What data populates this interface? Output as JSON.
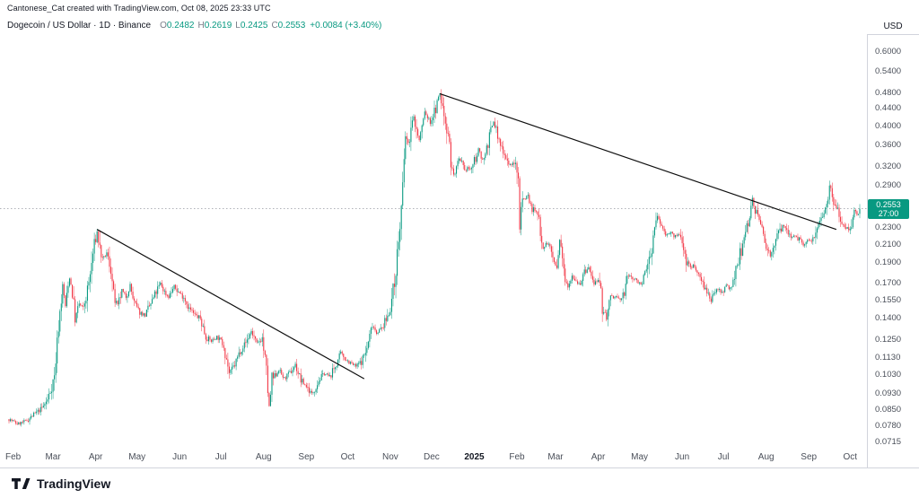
{
  "attribution": "Cantonese_Cat created with TradingView.com, Oct 08, 2025 23:33 UTC",
  "header": {
    "symbol_line": "Dogecoin / US Dollar · 1D · Binance",
    "ohlc": {
      "o_label": "O",
      "o": "0.2482",
      "h_label": "H",
      "h": "0.2619",
      "l_label": "L",
      "l": "0.2425",
      "c_label": "C",
      "c": "0.2553",
      "change": "+0.0084 (+3.40%)"
    },
    "currency": "USD"
  },
  "price_axis": {
    "labels": [
      "0.6000",
      "0.5400",
      "0.4800",
      "0.4400",
      "0.4000",
      "0.3600",
      "0.3200",
      "0.2900",
      "0.2300",
      "0.2100",
      "0.1900",
      "0.1700",
      "0.1550",
      "0.1400",
      "0.1250",
      "0.1130",
      "0.1030",
      "0.0930",
      "0.0850",
      "0.0780",
      "0.0715"
    ],
    "badge": {
      "price": "0.2553",
      "countdown": "27:00"
    }
  },
  "time_axis": {
    "months": [
      {
        "label": "Feb",
        "day": 3
      },
      {
        "label": "Mar",
        "day": 32
      },
      {
        "label": "Apr",
        "day": 63
      },
      {
        "label": "May",
        "day": 93
      },
      {
        "label": "Jun",
        "day": 124
      },
      {
        "label": "Jul",
        "day": 154
      },
      {
        "label": "Aug",
        "day": 185
      },
      {
        "label": "Sep",
        "day": 216
      },
      {
        "label": "Oct",
        "day": 246
      },
      {
        "label": "Nov",
        "day": 277
      },
      {
        "label": "Dec",
        "day": 307
      },
      {
        "label": "2025",
        "day": 338,
        "bold": true
      },
      {
        "label": "Feb",
        "day": 369
      },
      {
        "label": "Mar",
        "day": 397
      },
      {
        "label": "Apr",
        "day": 428
      },
      {
        "label": "May",
        "day": 458
      },
      {
        "label": "Jun",
        "day": 489
      },
      {
        "label": "Jul",
        "day": 519
      },
      {
        "label": "Aug",
        "day": 550
      },
      {
        "label": "Sep",
        "day": 581
      },
      {
        "label": "Oct",
        "day": 611
      }
    ]
  },
  "footer": {
    "brand": "TradingView"
  },
  "colors": {
    "up": "#089981",
    "down": "#F23645",
    "trendline": "#0F0F0F",
    "price_line": "#9598A1",
    "badge_bg": "#089981",
    "text": "#131722",
    "muted": "#787B86"
  },
  "chart_data": {
    "type": "candlestick",
    "title": "Dogecoin / US Dollar",
    "exchange": "Binance",
    "interval": "1D",
    "scale": "log",
    "x_range_days": 618,
    "x_start": "2024-01-29",
    "x_end": "2025-10-08",
    "ylim": [
      0.0638,
      0.655
    ],
    "current_price": 0.2553,
    "last_candle": {
      "open": 0.2482,
      "high": 0.2619,
      "low": 0.2425,
      "close": 0.2553,
      "change": 0.0084,
      "change_pct": 3.4
    },
    "price_path": [
      [
        0,
        0.081
      ],
      [
        6,
        0.079
      ],
      [
        12,
        0.08
      ],
      [
        18,
        0.083
      ],
      [
        24,
        0.086
      ],
      [
        28,
        0.09
      ],
      [
        33,
        0.102
      ],
      [
        36,
        0.135
      ],
      [
        39,
        0.168
      ],
      [
        41,
        0.15
      ],
      [
        44,
        0.176
      ],
      [
        46,
        0.162
      ],
      [
        48,
        0.14
      ],
      [
        51,
        0.152
      ],
      [
        54,
        0.148
      ],
      [
        57,
        0.163
      ],
      [
        59,
        0.178
      ],
      [
        61,
        0.2
      ],
      [
        64,
        0.225
      ],
      [
        66,
        0.205
      ],
      [
        68,
        0.193
      ],
      [
        71,
        0.2
      ],
      [
        74,
        0.185
      ],
      [
        76,
        0.158
      ],
      [
        79,
        0.15
      ],
      [
        82,
        0.163
      ],
      [
        85,
        0.158
      ],
      [
        88,
        0.168
      ],
      [
        91,
        0.152
      ],
      [
        95,
        0.145
      ],
      [
        99,
        0.143
      ],
      [
        103,
        0.152
      ],
      [
        107,
        0.162
      ],
      [
        110,
        0.17
      ],
      [
        113,
        0.162
      ],
      [
        116,
        0.158
      ],
      [
        120,
        0.167
      ],
      [
        123,
        0.162
      ],
      [
        127,
        0.158
      ],
      [
        131,
        0.148
      ],
      [
        135,
        0.143
      ],
      [
        139,
        0.14
      ],
      [
        143,
        0.127
      ],
      [
        147,
        0.124
      ],
      [
        151,
        0.127
      ],
      [
        156,
        0.122
      ],
      [
        158,
        0.113
      ],
      [
        160,
        0.104
      ],
      [
        164,
        0.109
      ],
      [
        168,
        0.118
      ],
      [
        172,
        0.123
      ],
      [
        176,
        0.131
      ],
      [
        180,
        0.122
      ],
      [
        184,
        0.126
      ],
      [
        187,
        0.105
      ],
      [
        189,
        0.086
      ],
      [
        191,
        0.1
      ],
      [
        196,
        0.106
      ],
      [
        200,
        0.101
      ],
      [
        204,
        0.104
      ],
      [
        208,
        0.109
      ],
      [
        212,
        0.1
      ],
      [
        216,
        0.097
      ],
      [
        220,
        0.093
      ],
      [
        225,
        0.1
      ],
      [
        229,
        0.104
      ],
      [
        233,
        0.102
      ],
      [
        237,
        0.108
      ],
      [
        241,
        0.116
      ],
      [
        244,
        0.113
      ],
      [
        248,
        0.11
      ],
      [
        252,
        0.108
      ],
      [
        256,
        0.111
      ],
      [
        260,
        0.119
      ],
      [
        264,
        0.136
      ],
      [
        267,
        0.13
      ],
      [
        271,
        0.133
      ],
      [
        275,
        0.142
      ],
      [
        278,
        0.155
      ],
      [
        280,
        0.17
      ],
      [
        282,
        0.2
      ],
      [
        284,
        0.23
      ],
      [
        286,
        0.285
      ],
      [
        288,
        0.38
      ],
      [
        290,
        0.36
      ],
      [
        292,
        0.395
      ],
      [
        294,
        0.42
      ],
      [
        296,
        0.392
      ],
      [
        298,
        0.37
      ],
      [
        300,
        0.4
      ],
      [
        302,
        0.432
      ],
      [
        304,
        0.42
      ],
      [
        306,
        0.408
      ],
      [
        308,
        0.425
      ],
      [
        310,
        0.44
      ],
      [
        313,
        0.478
      ],
      [
        315,
        0.44
      ],
      [
        317,
        0.412
      ],
      [
        319,
        0.39
      ],
      [
        321,
        0.33
      ],
      [
        323,
        0.305
      ],
      [
        325,
        0.318
      ],
      [
        327,
        0.332
      ],
      [
        329,
        0.325
      ],
      [
        331,
        0.312
      ],
      [
        333,
        0.32
      ],
      [
        335,
        0.315
      ],
      [
        338,
        0.33
      ],
      [
        341,
        0.352
      ],
      [
        343,
        0.338
      ],
      [
        345,
        0.335
      ],
      [
        347,
        0.358
      ],
      [
        350,
        0.388
      ],
      [
        352,
        0.41
      ],
      [
        354,
        0.392
      ],
      [
        356,
        0.365
      ],
      [
        359,
        0.352
      ],
      [
        362,
        0.332
      ],
      [
        365,
        0.322
      ],
      [
        367,
        0.33
      ],
      [
        370,
        0.298
      ],
      [
        371,
        0.235
      ],
      [
        372,
        0.262
      ],
      [
        374,
        0.27
      ],
      [
        377,
        0.275
      ],
      [
        379,
        0.258
      ],
      [
        382,
        0.252
      ],
      [
        385,
        0.242
      ],
      [
        388,
        0.208
      ],
      [
        391,
        0.212
      ],
      [
        394,
        0.202
      ],
      [
        398,
        0.182
      ],
      [
        400,
        0.214
      ],
      [
        403,
        0.182
      ],
      [
        406,
        0.168
      ],
      [
        409,
        0.178
      ],
      [
        412,
        0.172
      ],
      [
        415,
        0.17
      ],
      [
        418,
        0.18
      ],
      [
        421,
        0.185
      ],
      [
        424,
        0.172
      ],
      [
        429,
        0.168
      ],
      [
        431,
        0.15
      ],
      [
        434,
        0.141
      ],
      [
        437,
        0.157
      ],
      [
        441,
        0.158
      ],
      [
        444,
        0.155
      ],
      [
        447,
        0.162
      ],
      [
        450,
        0.178
      ],
      [
        453,
        0.175
      ],
      [
        456,
        0.172
      ],
      [
        460,
        0.17
      ],
      [
        463,
        0.182
      ],
      [
        466,
        0.2
      ],
      [
        469,
        0.228
      ],
      [
        471,
        0.245
      ],
      [
        474,
        0.232
      ],
      [
        477,
        0.222
      ],
      [
        480,
        0.225
      ],
      [
        483,
        0.218
      ],
      [
        486,
        0.222
      ],
      [
        489,
        0.215
      ],
      [
        492,
        0.192
      ],
      [
        495,
        0.185
      ],
      [
        498,
        0.188
      ],
      [
        501,
        0.178
      ],
      [
        504,
        0.172
      ],
      [
        507,
        0.162
      ],
      [
        510,
        0.152
      ],
      [
        512,
        0.162
      ],
      [
        515,
        0.165
      ],
      [
        518,
        0.162
      ],
      [
        521,
        0.168
      ],
      [
        524,
        0.165
      ],
      [
        527,
        0.172
      ],
      [
        530,
        0.195
      ],
      [
        533,
        0.208
      ],
      [
        536,
        0.232
      ],
      [
        538,
        0.248
      ],
      [
        540,
        0.27
      ],
      [
        542,
        0.255
      ],
      [
        544,
        0.242
      ],
      [
        547,
        0.23
      ],
      [
        551,
        0.205
      ],
      [
        553,
        0.198
      ],
      [
        556,
        0.212
      ],
      [
        559,
        0.222
      ],
      [
        562,
        0.232
      ],
      [
        565,
        0.228
      ],
      [
        568,
        0.218
      ],
      [
        571,
        0.222
      ],
      [
        574,
        0.215
      ],
      [
        577,
        0.208
      ],
      [
        580,
        0.213
      ],
      [
        583,
        0.215
      ],
      [
        586,
        0.228
      ],
      [
        589,
        0.242
      ],
      [
        592,
        0.252
      ],
      [
        594,
        0.262
      ],
      [
        596,
        0.292
      ],
      [
        598,
        0.275
      ],
      [
        600,
        0.262
      ],
      [
        602,
        0.252
      ],
      [
        604,
        0.242
      ],
      [
        606,
        0.235
      ],
      [
        608,
        0.232
      ],
      [
        610,
        0.228
      ],
      [
        612,
        0.238
      ],
      [
        614,
        0.252
      ],
      [
        616,
        0.246
      ],
      [
        618,
        0.2553
      ]
    ],
    "trendlines": [
      {
        "from": [
          64,
          0.228
        ],
        "to": [
          258,
          0.101
        ]
      },
      {
        "from": [
          313,
          0.478
        ],
        "to": [
          601,
          0.228
        ]
      }
    ]
  }
}
